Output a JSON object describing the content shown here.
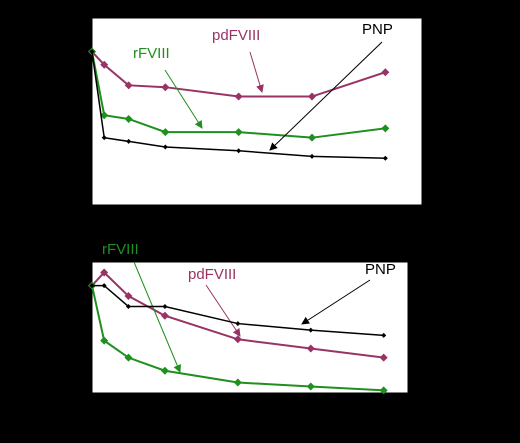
{
  "chart_data": [
    {
      "type": "line",
      "xlim": [
        0,
        27
      ],
      "ylim": [
        0,
        100
      ],
      "series": [
        {
          "name": "pdFVIII",
          "color": "#993366",
          "x": [
            0,
            1,
            3,
            6,
            12,
            18,
            24
          ],
          "values": [
            82,
            75,
            64,
            63,
            58,
            58,
            71
          ]
        },
        {
          "name": "rFVIII",
          "color": "#1f8f1f",
          "x": [
            0,
            1,
            3,
            6,
            12,
            18,
            24
          ],
          "values": [
            82,
            48,
            46,
            39,
            39,
            36,
            41
          ]
        },
        {
          "name": "PNP",
          "color": "#000000",
          "x": [
            0,
            1,
            3,
            6,
            12,
            18,
            24
          ],
          "values": [
            82,
            36,
            34,
            31,
            29,
            26,
            25
          ]
        }
      ]
    },
    {
      "type": "line",
      "xlim": [
        0,
        26
      ],
      "ylim": [
        0,
        100
      ],
      "series": [
        {
          "name": "pdFVIII",
          "color": "#993366",
          "x": [
            0,
            1,
            3,
            6,
            12,
            18,
            24
          ],
          "values": [
            82,
            92,
            74,
            59,
            41,
            34,
            27
          ]
        },
        {
          "name": "rFVIII",
          "color": "#1f8f1f",
          "x": [
            0,
            1,
            3,
            6,
            12,
            18,
            24
          ],
          "values": [
            82,
            40,
            27,
            17,
            8,
            5,
            2
          ]
        },
        {
          "name": "PNP",
          "color": "#000000",
          "x": [
            0,
            1,
            3,
            6,
            12,
            18,
            24
          ],
          "values": [
            82,
            82,
            66,
            66,
            53,
            48,
            44
          ]
        }
      ]
    }
  ]
}
